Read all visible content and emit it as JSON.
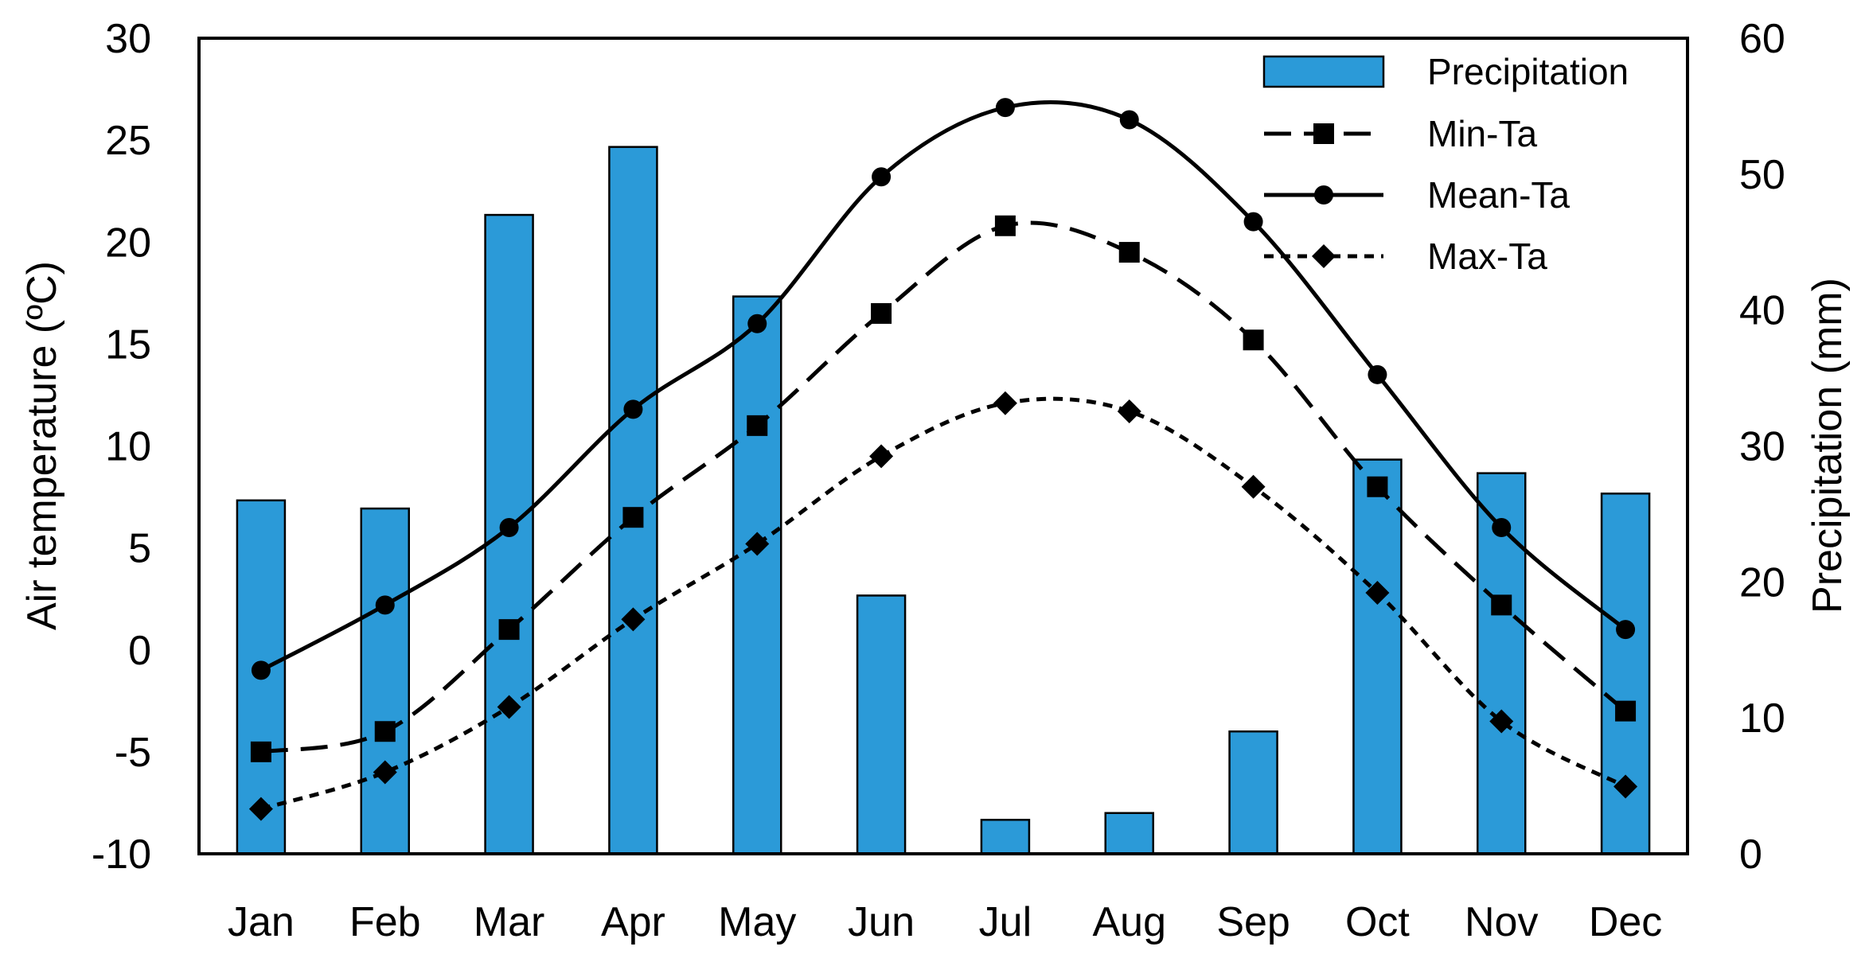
{
  "chart_data": {
    "type": "bar+line",
    "categories": [
      "Jan",
      "Feb",
      "Mar",
      "Apr",
      "May",
      "Jun",
      "Jul",
      "Aug",
      "Sep",
      "Oct",
      "Nov",
      "Dec"
    ],
    "y_left": {
      "label": "Air temperature (ºC)",
      "range": [
        -10,
        30
      ],
      "ticks": [
        "-10",
        "-5",
        "0",
        "5",
        "10",
        "15",
        "20",
        "25",
        "30"
      ]
    },
    "y_right": {
      "label": "Precipitation (mm)",
      "range": [
        0,
        60
      ],
      "ticks": [
        "0",
        "10",
        "20",
        "30",
        "40",
        "50",
        "60"
      ]
    },
    "bar_series": {
      "name": "Precipitation",
      "axis": "right",
      "color": "#2b9ad8",
      "values": [
        26,
        25.4,
        47,
        52,
        41,
        19,
        2.5,
        3,
        9,
        29,
        28,
        26.5
      ]
    },
    "line_series": [
      {
        "name": "Min-Ta",
        "axis": "left",
        "style": "long-dash",
        "marker": "square",
        "values": [
          -5,
          -4,
          1,
          6.5,
          11,
          16.5,
          20.8,
          19.5,
          15.2,
          8,
          2.2,
          -3
        ]
      },
      {
        "name": "Mean-Ta",
        "axis": "left",
        "style": "solid",
        "marker": "circle",
        "values": [
          -1,
          2.2,
          6,
          11.8,
          16,
          23.2,
          26.6,
          26,
          21,
          13.5,
          6,
          1
        ]
      },
      {
        "name": "Max-Ta",
        "axis": "left",
        "style": "short-dash",
        "marker": "diamond",
        "values": [
          -7.8,
          -6,
          -2.8,
          1.5,
          5.2,
          9.5,
          12.1,
          11.7,
          8,
          2.8,
          -3.5,
          -6.7
        ]
      }
    ],
    "legend": {
      "position": "top-right",
      "entries": [
        "Precipitation",
        "Min-Ta",
        "Mean-Ta",
        "Max-Ta"
      ]
    },
    "grid": false
  }
}
